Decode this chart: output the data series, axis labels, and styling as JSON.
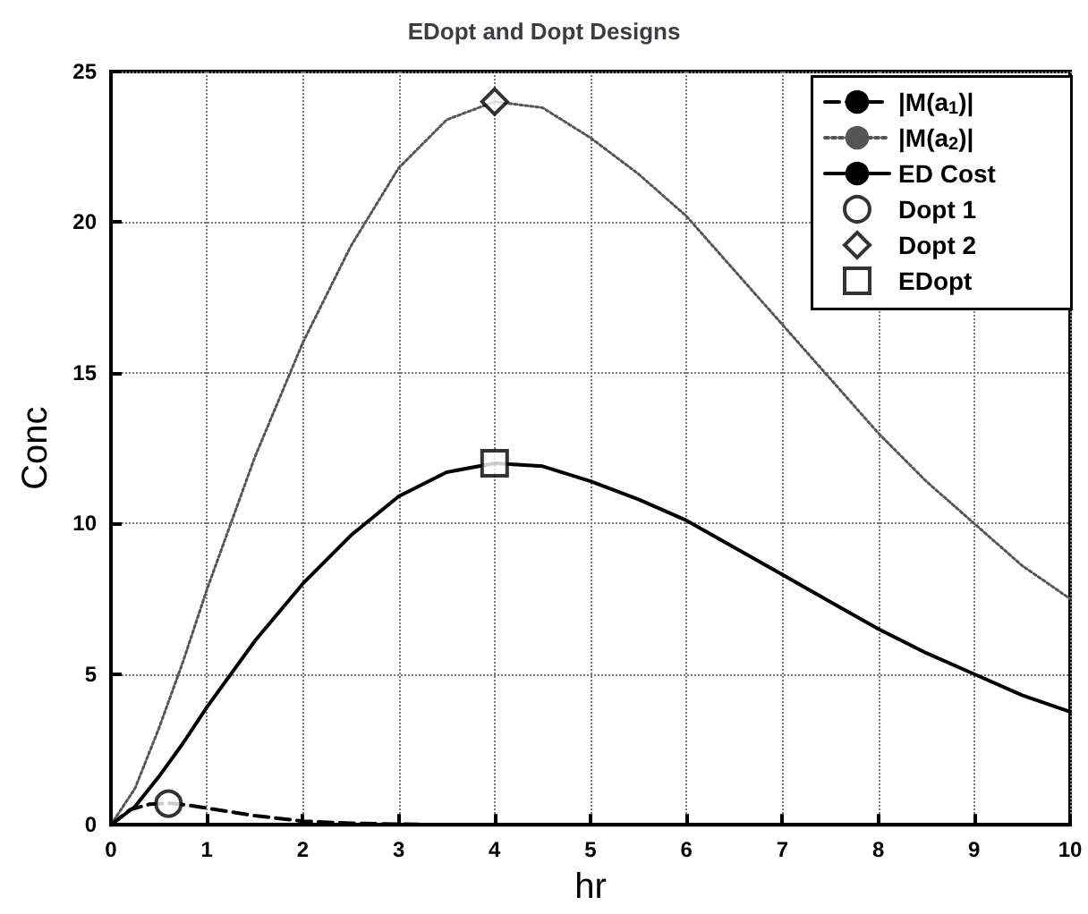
{
  "chart_data": {
    "type": "line",
    "title": "EDopt and Dopt Designs",
    "xlabel": "hr",
    "ylabel": "Conc",
    "xlim": [
      0,
      10
    ],
    "xticks": [
      0,
      1,
      2,
      3,
      4,
      5,
      6,
      7,
      8,
      9,
      10
    ],
    "ylim": [
      0,
      25
    ],
    "yticks": [
      0,
      5,
      10,
      15,
      20,
      25
    ],
    "grid": true,
    "legend": "top right",
    "series": [
      {
        "name": "|M(a$_{1}$)|",
        "type": "line",
        "color": "#000000",
        "line_style": "dashed",
        "marker": "none",
        "x": [
          0,
          0.2,
          0.4,
          0.6,
          0.8,
          1,
          1.5,
          2,
          2.5,
          3,
          3.5
        ],
        "values": [
          0,
          0.5,
          0.68,
          0.72,
          0.65,
          0.55,
          0.3,
          0.12,
          0.05,
          0.02,
          0
        ]
      },
      {
        "name": "|M(a$_{2}$)|",
        "type": "line",
        "color": "#555555",
        "line_style": "dotted",
        "marker": "none",
        "x": [
          0,
          0.25,
          0.5,
          0.75,
          1,
          1.5,
          2,
          2.5,
          3,
          3.5,
          4,
          4.5,
          5,
          5.5,
          6,
          6.5,
          7,
          7.5,
          8,
          8.5,
          9,
          9.5,
          10
        ],
        "values": [
          0,
          1.2,
          3.2,
          5.4,
          7.8,
          12.2,
          16.0,
          19.2,
          21.8,
          23.4,
          24.0,
          23.8,
          22.8,
          21.6,
          20.2,
          18.4,
          16.6,
          14.8,
          13.0,
          11.4,
          10.0,
          8.6,
          7.5
        ]
      },
      {
        "name": "ED Cost",
        "type": "line",
        "color": "#000000",
        "line_style": "solid",
        "marker": "none",
        "x": [
          0,
          0.25,
          0.5,
          0.75,
          1,
          1.5,
          2,
          2.5,
          3,
          3.5,
          4,
          4.5,
          5,
          5.5,
          6,
          6.5,
          7,
          7.5,
          8,
          8.5,
          9,
          9.5,
          10
        ],
        "values": [
          0,
          0.6,
          1.6,
          2.7,
          3.9,
          6.1,
          8.0,
          9.6,
          10.9,
          11.7,
          12.0,
          11.9,
          11.4,
          10.8,
          10.1,
          9.2,
          8.3,
          7.4,
          6.5,
          5.7,
          5.0,
          4.3,
          3.75
        ]
      },
      {
        "name": "Dopt 1",
        "type": "scatter",
        "color": "#000000",
        "marker": "circle",
        "x": [
          0.6
        ],
        "values": [
          0.7
        ]
      },
      {
        "name": "Dopt 2",
        "type": "scatter",
        "color": "#000000",
        "marker": "diamond",
        "x": [
          4
        ],
        "values": [
          24
        ]
      },
      {
        "name": "EDopt",
        "type": "scatter",
        "color": "#000000",
        "marker": "square",
        "x": [
          4
        ],
        "values": [
          12
        ]
      }
    ]
  }
}
